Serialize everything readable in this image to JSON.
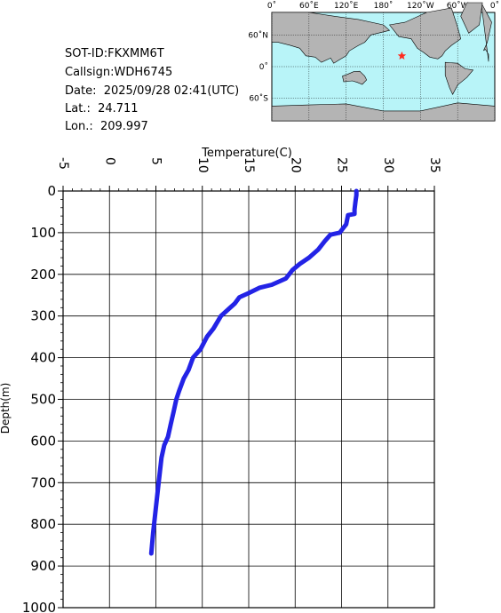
{
  "info": {
    "sot_id": "SOT-ID:FKXMM6T",
    "callsign": "Callsign:WDH6745",
    "date": "Date:  2025/09/28 02:41(UTC)",
    "lat": "Lat.:  24.711",
    "lon": "Lon.:  209.997"
  },
  "map": {
    "lon_labels": [
      "0˚",
      "60˚E",
      "120˚E",
      "180˚",
      "120˚W",
      "60˚W",
      "0˚"
    ],
    "lat_labels": [
      "60˚N",
      "0˚",
      "60˚S"
    ],
    "ocean_color": "#b8f4f8",
    "land_color": "#b4b4b4",
    "marker": {
      "lat": 24.711,
      "lon": 209.997,
      "color": "#ff2a1e",
      "symbol": "star"
    }
  },
  "chart_data": {
    "type": "line",
    "xlabel": "Temperature(C)",
    "ylabel": "Depth(m)",
    "xlim": [
      -5,
      35
    ],
    "ylim": [
      0,
      1000
    ],
    "y_inverted": true,
    "x_axis_position": "top",
    "x_ticks": [
      -5,
      0,
      5,
      10,
      15,
      20,
      25,
      30,
      35
    ],
    "y_ticks": [
      0,
      100,
      200,
      300,
      400,
      500,
      600,
      700,
      800,
      900,
      1000
    ],
    "grid": true,
    "series": [
      {
        "color": "#2323e6",
        "points": [
          [
            26.6,
            0
          ],
          [
            26.6,
            10
          ],
          [
            26.5,
            25
          ],
          [
            26.4,
            45
          ],
          [
            26.4,
            55
          ],
          [
            25.7,
            58
          ],
          [
            25.5,
            80
          ],
          [
            24.8,
            100
          ],
          [
            23.8,
            105
          ],
          [
            23.2,
            120
          ],
          [
            22.5,
            140
          ],
          [
            21.5,
            160
          ],
          [
            20.5,
            175
          ],
          [
            19.7,
            190
          ],
          [
            19.0,
            210
          ],
          [
            17.5,
            225
          ],
          [
            16.2,
            232
          ],
          [
            15.0,
            245
          ],
          [
            14.0,
            255
          ],
          [
            13.5,
            270
          ],
          [
            12.5,
            290
          ],
          [
            12.0,
            300
          ],
          [
            11.2,
            330
          ],
          [
            10.5,
            350
          ],
          [
            9.8,
            380
          ],
          [
            9.0,
            400
          ],
          [
            8.5,
            430
          ],
          [
            8.0,
            450
          ],
          [
            7.5,
            480
          ],
          [
            7.2,
            500
          ],
          [
            6.9,
            530
          ],
          [
            6.6,
            560
          ],
          [
            6.3,
            590
          ],
          [
            5.9,
            610
          ],
          [
            5.6,
            640
          ],
          [
            5.3,
            700
          ],
          [
            5.0,
            760
          ],
          [
            4.7,
            820
          ],
          [
            4.5,
            870
          ]
        ]
      }
    ]
  }
}
